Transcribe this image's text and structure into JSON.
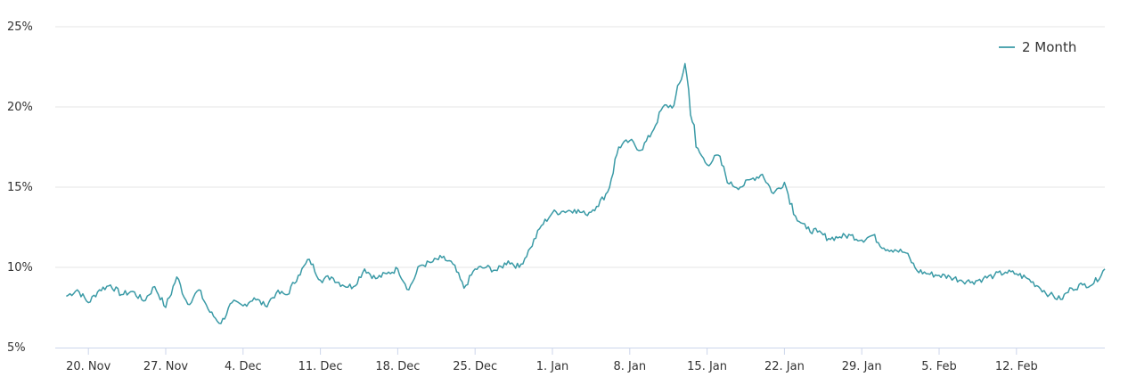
{
  "chart_data": {
    "type": "line",
    "title": "",
    "xlabel": "",
    "ylabel": "",
    "ylim": [
      5,
      25
    ],
    "y_ticks": [
      5,
      10,
      15,
      20,
      25
    ],
    "y_tick_format": "{v}%",
    "xlim": [
      "2022-11-17",
      "2023-02-20"
    ],
    "x_ticks": [
      {
        "date": "2022-11-20",
        "label": "20. Nov"
      },
      {
        "date": "2022-11-27",
        "label": "27. Nov"
      },
      {
        "date": "2022-12-04",
        "label": "4. Dec"
      },
      {
        "date": "2022-12-11",
        "label": "11. Dec"
      },
      {
        "date": "2022-12-18",
        "label": "18. Dec"
      },
      {
        "date": "2022-12-25",
        "label": "25. Dec"
      },
      {
        "date": "2023-01-01",
        "label": "1. Jan"
      },
      {
        "date": "2023-01-08",
        "label": "8. Jan"
      },
      {
        "date": "2023-01-15",
        "label": "15. Jan"
      },
      {
        "date": "2023-01-22",
        "label": "22. Jan"
      },
      {
        "date": "2023-01-29",
        "label": "29. Jan"
      },
      {
        "date": "2023-02-05",
        "label": "5. Feb"
      },
      {
        "date": "2023-02-12",
        "label": "12. Feb"
      }
    ],
    "grid": "horizontal",
    "legend": "top-right",
    "series": [
      {
        "name": "2 Month",
        "color": "#3a9aa6",
        "points": [
          [
            "2022-11-18",
            8.2
          ],
          [
            "2022-11-19",
            8.6
          ],
          [
            "2022-11-20",
            7.8
          ],
          [
            "2022-11-21",
            8.6
          ],
          [
            "2022-11-22",
            8.9
          ],
          [
            "2022-11-23",
            8.3
          ],
          [
            "2022-11-24",
            8.5
          ],
          [
            "2022-11-25",
            7.9
          ],
          [
            "2022-11-26",
            8.8
          ],
          [
            "2022-11-27",
            7.5
          ],
          [
            "2022-11-28",
            9.4
          ],
          [
            "2022-11-29",
            7.7
          ],
          [
            "2022-11-30",
            8.6
          ],
          [
            "2022-12-01",
            7.2
          ],
          [
            "2022-12-02",
            6.5
          ],
          [
            "2022-12-03",
            7.8
          ],
          [
            "2022-12-04",
            7.6
          ],
          [
            "2022-12-05",
            8.1
          ],
          [
            "2022-12-06",
            7.6
          ],
          [
            "2022-12-07",
            8.4
          ],
          [
            "2022-12-08",
            8.3
          ],
          [
            "2022-12-09",
            9.5
          ],
          [
            "2022-12-10",
            10.5
          ],
          [
            "2022-12-11",
            9.2
          ],
          [
            "2022-12-12",
            9.4
          ],
          [
            "2022-12-13",
            8.9
          ],
          [
            "2022-12-14",
            8.8
          ],
          [
            "2022-12-15",
            9.9
          ],
          [
            "2022-12-16",
            9.3
          ],
          [
            "2022-12-17",
            9.6
          ],
          [
            "2022-12-18",
            9.9
          ],
          [
            "2022-12-19",
            8.6
          ],
          [
            "2022-12-20",
            10.1
          ],
          [
            "2022-12-21",
            10.3
          ],
          [
            "2022-12-22",
            10.6
          ],
          [
            "2022-12-23",
            10.2
          ],
          [
            "2022-12-24",
            8.7
          ],
          [
            "2022-12-25",
            9.9
          ],
          [
            "2022-12-26",
            10.0
          ],
          [
            "2022-12-27",
            9.8
          ],
          [
            "2022-12-28",
            10.4
          ],
          [
            "2022-12-29",
            10.0
          ],
          [
            "2022-12-30",
            11.2
          ],
          [
            "2022-12-31",
            12.6
          ],
          [
            "2023-01-01",
            13.4
          ],
          [
            "2023-01-02",
            13.5
          ],
          [
            "2023-01-03",
            13.6
          ],
          [
            "2023-01-04",
            13.3
          ],
          [
            "2023-01-05",
            13.8
          ],
          [
            "2023-01-06",
            14.7
          ],
          [
            "2023-01-07",
            17.5
          ],
          [
            "2023-01-08",
            17.9
          ],
          [
            "2023-01-09",
            17.3
          ],
          [
            "2023-01-10",
            18.4
          ],
          [
            "2023-01-11",
            20.0
          ],
          [
            "2023-01-12",
            20.1
          ],
          [
            "2023-01-13",
            22.7
          ],
          [
            "2023-01-14",
            17.5
          ],
          [
            "2023-01-15",
            16.4
          ],
          [
            "2023-01-16",
            17.0
          ],
          [
            "2023-01-17",
            15.2
          ],
          [
            "2023-01-18",
            15.0
          ],
          [
            "2023-01-19",
            15.5
          ],
          [
            "2023-01-20",
            15.8
          ],
          [
            "2023-01-21",
            14.6
          ],
          [
            "2023-01-22",
            15.3
          ],
          [
            "2023-01-23",
            13.2
          ],
          [
            "2023-01-24",
            12.4
          ],
          [
            "2023-01-25",
            12.2
          ],
          [
            "2023-01-26",
            11.8
          ],
          [
            "2023-01-27",
            11.9
          ],
          [
            "2023-01-28",
            12.0
          ],
          [
            "2023-01-29",
            11.7
          ],
          [
            "2023-01-30",
            12.0
          ],
          [
            "2023-01-31",
            11.2
          ],
          [
            "2023-02-01",
            11.1
          ],
          [
            "2023-02-02",
            10.9
          ],
          [
            "2023-02-03",
            9.8
          ],
          [
            "2023-02-04",
            9.6
          ],
          [
            "2023-02-05",
            9.5
          ],
          [
            "2023-02-06",
            9.4
          ],
          [
            "2023-02-07",
            9.2
          ],
          [
            "2023-02-08",
            9.1
          ],
          [
            "2023-02-09",
            9.3
          ],
          [
            "2023-02-10",
            9.5
          ],
          [
            "2023-02-11",
            9.7
          ],
          [
            "2023-02-12",
            9.6
          ],
          [
            "2023-02-13",
            9.3
          ],
          [
            "2023-02-14",
            8.8
          ],
          [
            "2023-02-15",
            8.3
          ],
          [
            "2023-02-16",
            8.0
          ],
          [
            "2023-02-17",
            8.7
          ],
          [
            "2023-02-18",
            8.9
          ],
          [
            "2023-02-19",
            9.0
          ],
          [
            "2023-02-20",
            9.9
          ]
        ]
      }
    ]
  }
}
